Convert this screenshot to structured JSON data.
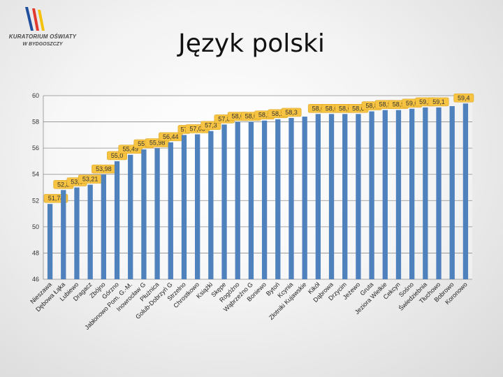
{
  "slide": {
    "title": "Język polski",
    "logo_line1": "KURATORIUM OŚWIATY",
    "logo_line2": "W BYDGOSZCZY",
    "logo_colors": [
      "#1f4e9c",
      "#e03a2f",
      "#f4c20d"
    ]
  },
  "chart_data": {
    "type": "bar",
    "title": "",
    "xlabel": "",
    "ylabel": "",
    "ylim": [
      46,
      60
    ],
    "yticks": [
      46,
      48,
      50,
      52,
      54,
      56,
      58,
      60
    ],
    "grid": true,
    "bar_color": "#4f81bd",
    "label_bg": "#f6c342",
    "categories": [
      "Nieszawa",
      "Dębowa Łąka",
      "Lubiewo",
      "Dragacz",
      "Zbójno",
      "Górzno",
      "Jabłonowo Pom. G.-M.",
      "Inowrocław G",
      "Płużnica",
      "Golub-Dobrzyń G",
      "Strzelno",
      "Chrostkowo",
      "Książki",
      "Skępe",
      "Rogóźno",
      "Wąbrzeźno G",
      "Boniewo",
      "Bytoń",
      "Kcynia",
      "Złotniki Kujawskie",
      "Kikół",
      "Dąbrowa",
      "Drzycim",
      "Jeżewo",
      "Gruta",
      "Jeziora Wielkie",
      "Cekcyn",
      "Sośno",
      "Świedziebnia",
      "Tłuchowo",
      "Bobrowo",
      "Koronowo"
    ],
    "values": [
      51.74,
      52.8,
      53.0,
      53.21,
      53.98,
      55.0,
      55.49,
      55.9,
      55.98,
      56.44,
      57.0,
      57.05,
      57.3,
      57.8,
      58.0,
      58.0,
      58.1,
      58.2,
      58.3,
      58.4,
      58.6,
      58.6,
      58.6,
      58.6,
      58.8,
      58.9,
      58.9,
      59.0,
      59.1,
      59.1,
      59.2,
      59.4
    ],
    "data_labels": [
      "51,74",
      "52,8",
      "53,0",
      "53,21",
      "53,98",
      "55,0",
      "55,49",
      "55,9",
      "55,98",
      "56,44",
      "57",
      "57,05",
      "57,3",
      "57,8",
      "58,0",
      "58,0",
      "58,1",
      "58,2",
      "58,3",
      "",
      "58,6",
      "58,6",
      "58,6",
      "58,6",
      "58,8",
      "58,9",
      "58,9",
      "59,0",
      "59,1",
      "59,1",
      "",
      "59,4"
    ]
  }
}
